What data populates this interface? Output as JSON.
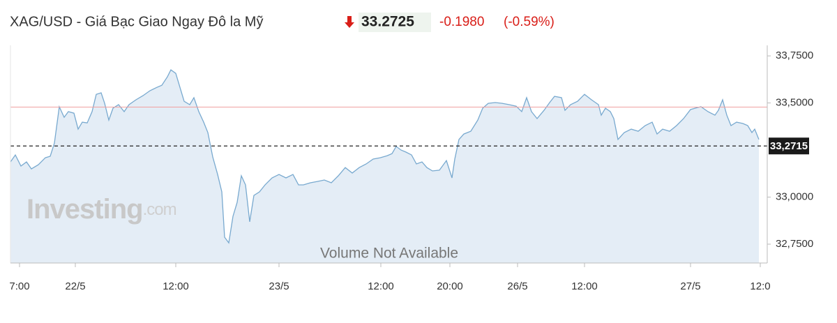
{
  "header": {
    "title": "XAG/USD - Giá Bạc Giao Ngay Đô la Mỹ",
    "price": "33.2725",
    "change": "-0.1980",
    "change_percent": "(-0.59%)"
  },
  "chart_data": {
    "type": "area",
    "color": "#78a9cf",
    "fill": "#e4edf6",
    "watermark": {
      "brand": "Investing",
      "suffix": ".com"
    },
    "note": "Volume Not Available",
    "reference_line": {
      "value": 33.478,
      "color": "#f0a0a0"
    },
    "current_price": {
      "value": 33.2715,
      "label": "33,2715"
    },
    "xlim": [
      0,
      108.5
    ],
    "xticks": [
      {
        "value": 1.3,
        "label": "7:00"
      },
      {
        "value": 9.3,
        "label": "22/5"
      },
      {
        "value": 23.7,
        "label": "12:00"
      },
      {
        "value": 38.5,
        "label": "23/5"
      },
      {
        "value": 53.1,
        "label": "12:00"
      },
      {
        "value": 63,
        "label": "20:00"
      },
      {
        "value": 72.7,
        "label": "26/5"
      },
      {
        "value": 82.3,
        "label": "12:00"
      },
      {
        "value": 97.5,
        "label": "27/5"
      },
      {
        "value": 107.5,
        "label": "12:0"
      }
    ],
    "ylim": [
      32.65,
      33.806
    ],
    "yticks": [
      {
        "value": 33.75,
        "label": "33,7500"
      },
      {
        "value": 33.5,
        "label": "33,5000"
      },
      {
        "value": 33,
        "label": "33,0000"
      },
      {
        "value": 32.75,
        "label": "32,7500"
      }
    ],
    "x": [
      0,
      0.7,
      1.5,
      2.3,
      3,
      4,
      5,
      5.7,
      6.3,
      7,
      7.7,
      8.3,
      9.1,
      9.7,
      10.3,
      11,
      11.7,
      12.3,
      13,
      13.5,
      14.1,
      14.7,
      15.5,
      16.3,
      17,
      18,
      19,
      20,
      21,
      21.7,
      22.5,
      23,
      23.7,
      24.3,
      24.9,
      25.7,
      26.3,
      27,
      27.7,
      28.3,
      29,
      29.7,
      30.3,
      30.7,
      31.3,
      31.9,
      32.5,
      33.1,
      33.7,
      34.3,
      34.9,
      35.7,
      36.5,
      37.5,
      38.5,
      39.5,
      40.5,
      41.3,
      42,
      43,
      44,
      45,
      46,
      47,
      48,
      49,
      50,
      51,
      52,
      53,
      54,
      54.7,
      55.3,
      56,
      56.7,
      57.5,
      58.2,
      59,
      59.7,
      60.5,
      61.5,
      62.5,
      63.3,
      63.7,
      64.3,
      65,
      66,
      67,
      67.7,
      68.5,
      69.5,
      70.5,
      71.5,
      72.5,
      73.3,
      74,
      74.7,
      75.5,
      76.5,
      77.3,
      78,
      79,
      79.5,
      80.3,
      81.3,
      82.3,
      83.3,
      84.3,
      84.7,
      85.3,
      86,
      86.5,
      87.1,
      88,
      89,
      90,
      91,
      92,
      92.7,
      93.5,
      94.5,
      95.5,
      96.5,
      97.5,
      98.5,
      99,
      100,
      101,
      101.5,
      102.1,
      102.7,
      103.3,
      104.1,
      105,
      105.7,
      106.3,
      106.7,
      107.3
    ],
    "series": [
      {
        "name": "XAG/USD",
        "values": [
          33.187,
          33.224,
          33.165,
          33.187,
          33.15,
          33.172,
          33.209,
          33.217,
          33.287,
          33.48,
          33.424,
          33.454,
          33.446,
          33.361,
          33.398,
          33.394,
          33.454,
          33.546,
          33.554,
          33.498,
          33.409,
          33.472,
          33.491,
          33.454,
          33.491,
          33.517,
          33.539,
          33.565,
          33.583,
          33.594,
          33.639,
          33.676,
          33.657,
          33.583,
          33.509,
          33.491,
          33.528,
          33.454,
          33.398,
          33.343,
          33.213,
          33.12,
          33.028,
          32.787,
          32.757,
          32.898,
          32.972,
          33.113,
          33.065,
          32.869,
          33.009,
          33.028,
          33.065,
          33.102,
          33.12,
          33.102,
          33.12,
          33.065,
          33.065,
          33.076,
          33.083,
          33.091,
          33.076,
          33.113,
          33.157,
          33.128,
          33.157,
          33.176,
          33.202,
          33.209,
          33.22,
          33.231,
          33.269,
          33.25,
          33.239,
          33.224,
          33.176,
          33.187,
          33.157,
          33.139,
          33.143,
          33.194,
          33.102,
          33.202,
          33.306,
          33.335,
          33.35,
          33.409,
          33.472,
          33.498,
          33.502,
          33.498,
          33.491,
          33.483,
          33.454,
          33.528,
          33.454,
          33.417,
          33.461,
          33.502,
          33.535,
          33.528,
          33.461,
          33.491,
          33.509,
          33.546,
          33.517,
          33.491,
          33.435,
          33.472,
          33.454,
          33.417,
          33.306,
          33.343,
          33.361,
          33.35,
          33.38,
          33.398,
          33.335,
          33.361,
          33.35,
          33.38,
          33.417,
          33.465,
          33.476,
          33.48,
          33.454,
          33.435,
          33.461,
          33.517,
          33.435,
          33.38,
          33.398,
          33.391,
          33.38,
          33.343,
          33.361,
          33.306
        ]
      }
    ]
  }
}
